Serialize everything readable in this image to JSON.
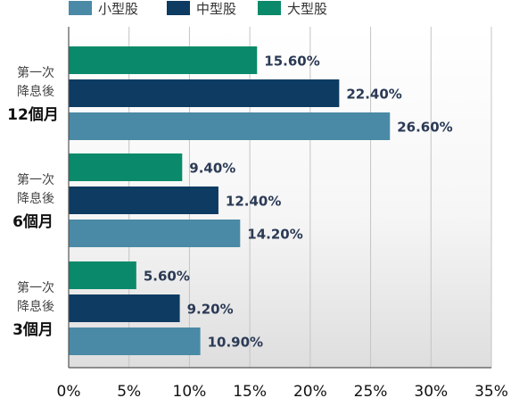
{
  "chart_data": {
    "type": "bar",
    "orientation": "horizontal",
    "categories": [
      {
        "line1": "第一次",
        "line2": "降息後",
        "line3": "12個月"
      },
      {
        "line1": "第一次",
        "line2": "降息後",
        "line3": "6個月"
      },
      {
        "line1": "第一次",
        "line2": "降息後",
        "line3": "3個月"
      }
    ],
    "series": [
      {
        "name": "小型股",
        "color": "#4a8aa6",
        "values": [
          26.6,
          14.2,
          10.9
        ],
        "labels": [
          "26.60%",
          "14.20%",
          "10.90%"
        ]
      },
      {
        "name": "中型股",
        "color": "#0d3b62",
        "values": [
          22.4,
          12.4,
          9.2
        ],
        "labels": [
          "22.40%",
          "12.40%",
          "9.20%"
        ]
      },
      {
        "name": "大型股",
        "color": "#0a8a6a",
        "values": [
          15.6,
          9.4,
          5.6
        ],
        "labels": [
          "15.60%",
          "9.40%",
          "5.60%"
        ]
      }
    ],
    "bar_order_top_to_bottom": [
      "大型股",
      "中型股",
      "小型股"
    ],
    "xlim": [
      0,
      35
    ],
    "xticks": [
      "0%",
      "5%",
      "10%",
      "15%",
      "20%",
      "25%",
      "30%",
      "35%"
    ],
    "grid": "vertical",
    "legend_position": "top",
    "background": "gradient"
  }
}
